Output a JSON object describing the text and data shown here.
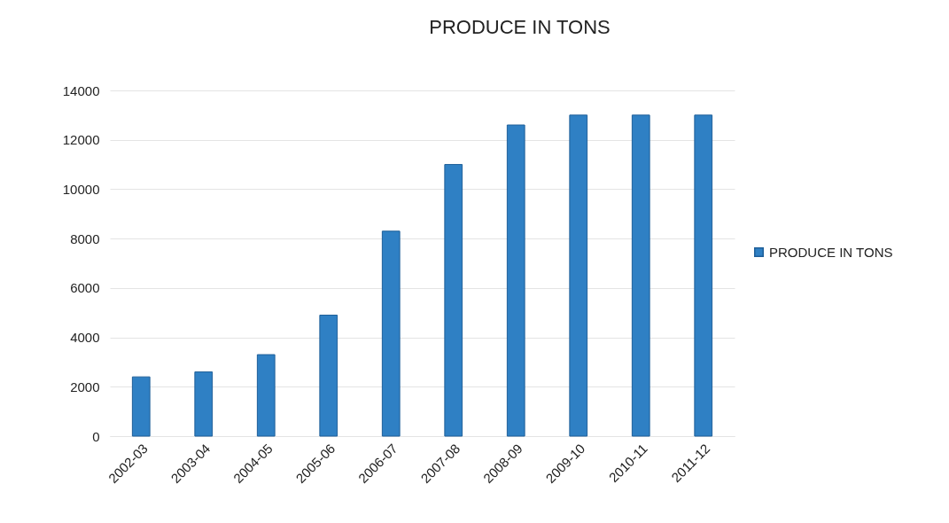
{
  "chart_data": {
    "type": "bar",
    "title": "PRODUCE IN TONS",
    "categories": [
      "2002-03",
      "2003-04",
      "2004-05",
      "2005-06",
      "2006-07",
      "2007-08",
      "2008-09",
      "2009-10",
      "2010-11",
      "2011-12"
    ],
    "series": [
      {
        "name": "PRODUCE IN TONS",
        "color": "#2f80c4",
        "values": [
          2400,
          2600,
          3300,
          4900,
          8300,
          11000,
          12600,
          13000,
          13000,
          13000
        ]
      }
    ],
    "ylim": [
      0,
      14000
    ],
    "yticks": [
      0,
      2000,
      4000,
      6000,
      8000,
      10000,
      12000,
      14000
    ],
    "grid": "y",
    "legend": "right"
  }
}
